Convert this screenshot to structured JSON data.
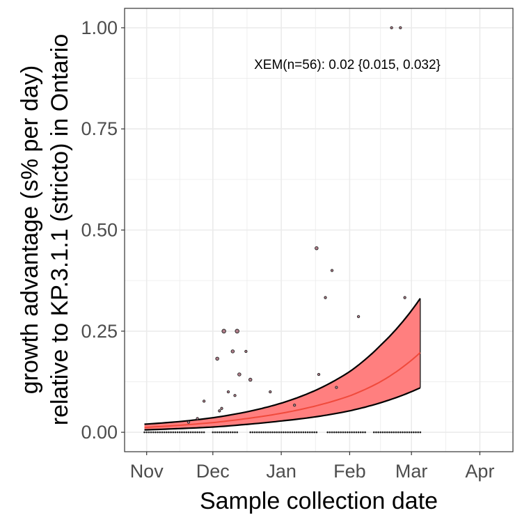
{
  "chart_data": {
    "type": "scatter",
    "xlabel": "Sample collection date",
    "ylabel_lines": [
      "growth advantage (s% per day)",
      "relative to KP.3.1.1 (stricto) in Ontario"
    ],
    "x_ticks": [
      {
        "label": "Nov",
        "date": "2024-11-01"
      },
      {
        "label": "Dec",
        "date": "2024-12-01"
      },
      {
        "label": "Jan",
        "date": "2025-01-01"
      },
      {
        "label": "Feb",
        "date": "2025-02-01"
      },
      {
        "label": "Mar",
        "date": "2025-03-01"
      },
      {
        "label": "Apr",
        "date": "2025-04-01"
      }
    ],
    "xlim": [
      "2024-10-22",
      "2025-04-16"
    ],
    "y_ticks": [
      {
        "label": "0.00",
        "value": 0.0
      },
      {
        "label": "0.25",
        "value": 0.25
      },
      {
        "label": "0.50",
        "value": 0.5
      },
      {
        "label": "0.75",
        "value": 0.75
      },
      {
        "label": "1.00",
        "value": 1.0
      }
    ],
    "ylim": [
      -0.048,
      1.048
    ],
    "annotation": "XEM(n=56): 0.02 {0.015, 0.032}",
    "grid": true,
    "legend": "none",
    "colors": {
      "fit_line": "#f04a3c",
      "ribbon_fill": "#ff7f7f",
      "ribbon_edge": "#000000",
      "point_fill": "#b07e8a",
      "point_edge": "#222222",
      "grid": "#ebebeb",
      "panel_border": "#333333"
    },
    "fit": {
      "dates": [
        "2024-10-31",
        "2024-11-15",
        "2024-12-01",
        "2024-12-15",
        "2025-01-01",
        "2025-01-15",
        "2025-02-01",
        "2025-02-15",
        "2025-03-05"
      ],
      "mid": [
        0.012,
        0.017,
        0.024,
        0.033,
        0.047,
        0.063,
        0.09,
        0.125,
        0.197
      ],
      "lower": [
        0.006,
        0.009,
        0.013,
        0.019,
        0.028,
        0.037,
        0.053,
        0.073,
        0.11
      ],
      "upper": [
        0.02,
        0.026,
        0.036,
        0.049,
        0.072,
        0.1,
        0.15,
        0.215,
        0.331
      ]
    },
    "points": [
      {
        "date": "2024-11-20",
        "y": 0.025,
        "size": 1
      },
      {
        "date": "2024-11-24",
        "y": 0.034,
        "size": 1
      },
      {
        "date": "2024-11-27",
        "y": 0.077,
        "size": 1
      },
      {
        "date": "2024-12-03",
        "y": 0.182,
        "size": 2
      },
      {
        "date": "2024-12-04",
        "y": 0.053,
        "size": 1
      },
      {
        "date": "2024-12-05",
        "y": 0.059,
        "size": 1
      },
      {
        "date": "2024-12-06",
        "y": 0.25,
        "size": 3
      },
      {
        "date": "2024-12-08",
        "y": 0.1,
        "size": 1
      },
      {
        "date": "2024-12-10",
        "y": 0.2,
        "size": 2
      },
      {
        "date": "2024-12-11",
        "y": 0.091,
        "size": 1
      },
      {
        "date": "2024-12-12",
        "y": 0.25,
        "size": 3
      },
      {
        "date": "2024-12-13",
        "y": 0.143,
        "size": 2
      },
      {
        "date": "2024-12-16",
        "y": 0.2,
        "size": 1
      },
      {
        "date": "2024-12-18",
        "y": 0.13,
        "size": 2
      },
      {
        "date": "2024-12-27",
        "y": 0.1,
        "size": 1
      },
      {
        "date": "2025-01-07",
        "y": 0.067,
        "size": 1
      },
      {
        "date": "2025-01-17",
        "y": 0.455,
        "size": 2
      },
      {
        "date": "2025-01-18",
        "y": 0.143,
        "size": 1
      },
      {
        "date": "2025-01-21",
        "y": 0.333,
        "size": 1
      },
      {
        "date": "2025-01-24",
        "y": 0.4,
        "size": 1
      },
      {
        "date": "2025-01-26",
        "y": 0.111,
        "size": 1
      },
      {
        "date": "2025-02-05",
        "y": 0.286,
        "size": 1
      },
      {
        "date": "2025-02-20",
        "y": 1.0,
        "size": 1
      },
      {
        "date": "2025-02-24",
        "y": 1.0,
        "size": 1
      },
      {
        "date": "2025-02-26",
        "y": 0.333,
        "size": 1
      }
    ],
    "zero_points": {
      "start": "2024-10-31",
      "end": "2025-03-05",
      "gaps": [
        [
          "2024-11-28",
          "2024-11-30"
        ],
        [
          "2024-12-13",
          "2024-12-17"
        ],
        [
          "2025-01-18",
          "2025-01-21"
        ],
        [
          "2025-02-09",
          "2025-02-11"
        ]
      ]
    }
  }
}
